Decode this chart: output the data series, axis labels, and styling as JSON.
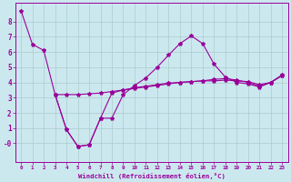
{
  "background_color": "#cce8ef",
  "line_color": "#990099",
  "grid_color": "#aacccc",
  "xlabel": "Windchill (Refroidissement éolien,°C)",
  "xlabel_color": "#990099",
  "tick_color": "#990099",
  "xlim": [
    -0.5,
    23.5
  ],
  "ylim": [
    -1.2,
    9.2
  ],
  "yticks": [
    0,
    1,
    2,
    3,
    4,
    5,
    6,
    7,
    8
  ],
  "ytick_labels": [
    "-0",
    "1",
    "2",
    "3",
    "4",
    "5",
    "6",
    "7",
    "8"
  ],
  "xticks": [
    0,
    1,
    2,
    3,
    4,
    5,
    6,
    7,
    8,
    9,
    10,
    11,
    12,
    13,
    14,
    15,
    16,
    17,
    18,
    19,
    20,
    21,
    22,
    23
  ],
  "series1_x": [
    0,
    1,
    2,
    3,
    4,
    5,
    6,
    7,
    8,
    9,
    10,
    11,
    12,
    13,
    14,
    15,
    16,
    17,
    18,
    19,
    20,
    21,
    22,
    23
  ],
  "series1_y": [
    8.7,
    6.5,
    6.1,
    3.2,
    0.9,
    -0.2,
    -0.1,
    1.65,
    1.65,
    3.2,
    3.8,
    4.3,
    5.0,
    5.8,
    6.55,
    7.05,
    6.55,
    5.2,
    4.35,
    4.0,
    3.9,
    3.7,
    4.0,
    4.5
  ],
  "series2_x": [
    3,
    4,
    5,
    6,
    7,
    8,
    9,
    10,
    11,
    12,
    13,
    14,
    15,
    16,
    17,
    18,
    19,
    20,
    21,
    22,
    23
  ],
  "series2_y": [
    3.2,
    3.2,
    3.2,
    3.25,
    3.3,
    3.4,
    3.5,
    3.6,
    3.7,
    3.8,
    3.9,
    4.0,
    4.05,
    4.1,
    4.1,
    4.15,
    4.1,
    4.05,
    3.85,
    4.0,
    4.45
  ],
  "series3_x": [
    3,
    4,
    5,
    6,
    7,
    8,
    9,
    10,
    11,
    12,
    13,
    14,
    15,
    16,
    17,
    18,
    19,
    20,
    21,
    22,
    23
  ],
  "series3_y": [
    3.2,
    0.9,
    -0.2,
    -0.1,
    1.65,
    3.3,
    3.5,
    3.65,
    3.75,
    3.85,
    3.95,
    4.0,
    4.05,
    4.1,
    4.2,
    4.25,
    4.15,
    4.0,
    3.75,
    4.0,
    4.45
  ]
}
